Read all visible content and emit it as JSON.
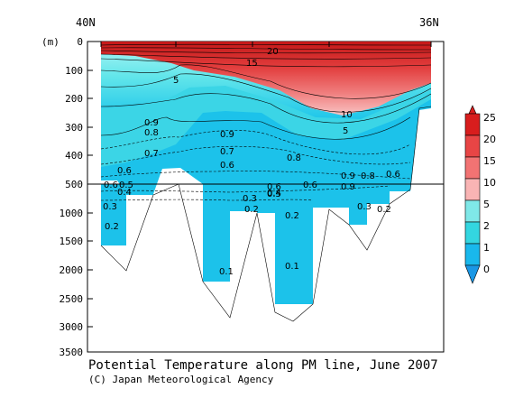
{
  "chart_data": {
    "type": "heatmap",
    "title": "Potential Temperature along PM line, June 2007",
    "credit": "(C) Japan Meteorological Agency",
    "ylabel": "(m)",
    "x_labels": [
      "40N",
      "36N"
    ],
    "y_ticks_upper": [
      "0",
      "100",
      "200",
      "300",
      "400",
      "500"
    ],
    "y_ticks_lower": [
      "1000",
      "1500",
      "2000",
      "2500",
      "3000",
      "3500"
    ],
    "y_upper_range": [
      0,
      500
    ],
    "y_lower_range": [
      500,
      3500
    ],
    "contour_labels": [
      "20",
      "15",
      "10",
      "5",
      "5",
      "0.9",
      "0.8",
      "0.7",
      "0.6",
      "0.9",
      "0.7",
      "0.6",
      "0.8",
      "0.6",
      "0.5",
      "0.4",
      "0.3",
      "0.2",
      "0.2",
      "0.1",
      "0.1",
      "0.6",
      "0.5",
      "0.4",
      "0.3",
      "0.2",
      "0.9",
      "0.8",
      "0.6",
      "0.9",
      "0.6",
      "0.3",
      "0.2"
    ],
    "colorbar": {
      "ticks": [
        "25",
        "20",
        "15",
        "10",
        "5",
        "2",
        "1",
        "0"
      ],
      "colors": [
        "#d81d1d",
        "#e84545",
        "#f27373",
        "#f9b4b4",
        "#7fe8e8",
        "#33d6e0",
        "#19b8ec",
        "#1a97e5"
      ]
    }
  }
}
